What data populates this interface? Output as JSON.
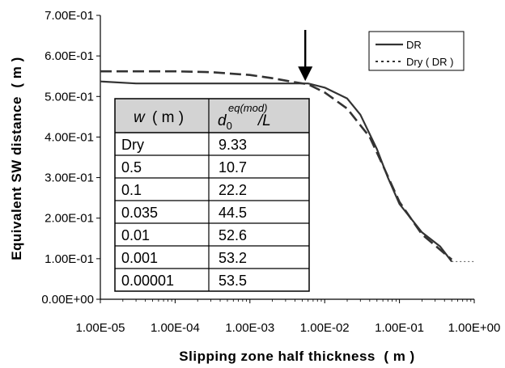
{
  "chart_data": {
    "type": "line",
    "xlabel": "Slipping zone half thickness  ( m )",
    "ylabel": "Equivalent SW distance  ( m )",
    "xscale": "log",
    "xlim": [
      1e-05,
      1
    ],
    "ylim": [
      0,
      0.7
    ],
    "x_ticks": [
      "1.00E-05",
      "1.00E-04",
      "1.00E-03",
      "1.00E-02",
      "1.00E-01",
      "1.00E+00"
    ],
    "y_ticks": [
      "0.00E+00",
      "1.00E-01",
      "2.00E-01",
      "3.00E-01",
      "4.00E-01",
      "5.00E-01",
      "6.00E-01",
      "7.00E-01"
    ],
    "grid": false,
    "legend": {
      "position": "top-right",
      "entries": [
        "DR",
        "Dry ( DR )"
      ]
    },
    "series": [
      {
        "name": "DR",
        "style": "solid",
        "x": [
          1e-05,
          3e-05,
          0.0001,
          0.0003,
          0.001,
          0.003,
          0.006,
          0.01,
          0.02,
          0.03,
          0.05,
          0.07,
          0.1,
          0.2,
          0.35,
          0.5
        ],
        "y": [
          0.537,
          0.532,
          0.532,
          0.532,
          0.532,
          0.532,
          0.532,
          0.522,
          0.495,
          0.455,
          0.37,
          0.3,
          0.235,
          0.165,
          0.13,
          0.093
        ]
      },
      {
        "name": "",
        "style": "dashed",
        "x": [
          1e-05,
          0.0001,
          0.0003,
          0.001,
          0.002,
          0.004,
          0.006,
          0.01,
          0.02,
          0.04,
          0.06,
          0.1,
          0.2,
          0.5
        ],
        "y": [
          0.562,
          0.562,
          0.56,
          0.553,
          0.545,
          0.535,
          0.53,
          0.51,
          0.47,
          0.4,
          0.33,
          0.24,
          0.16,
          0.098
        ]
      },
      {
        "name": "Dry ( DR )",
        "style": "dotted",
        "x": [
          0.5,
          1
        ],
        "y": [
          0.093,
          0.093
        ]
      }
    ],
    "annotations": [
      {
        "type": "arrow",
        "x": 0.0055,
        "y_from": 0.7,
        "y_to": 0.53
      }
    ],
    "table": {
      "header_w": "w",
      "header_w_unit": "( m )",
      "header_d": "d",
      "header_d_sub": "0",
      "header_d_sup": "eq(mod)",
      "header_d_tail": "/L",
      "rows": [
        [
          "Dry",
          "9.33"
        ],
        [
          "0.5",
          "10.7"
        ],
        [
          "0.1",
          "22.2"
        ],
        [
          "0.035",
          "44.5"
        ],
        [
          "0.01",
          "52.6"
        ],
        [
          "0.001",
          "53.2"
        ],
        [
          "0.00001",
          "53.5"
        ]
      ]
    }
  }
}
